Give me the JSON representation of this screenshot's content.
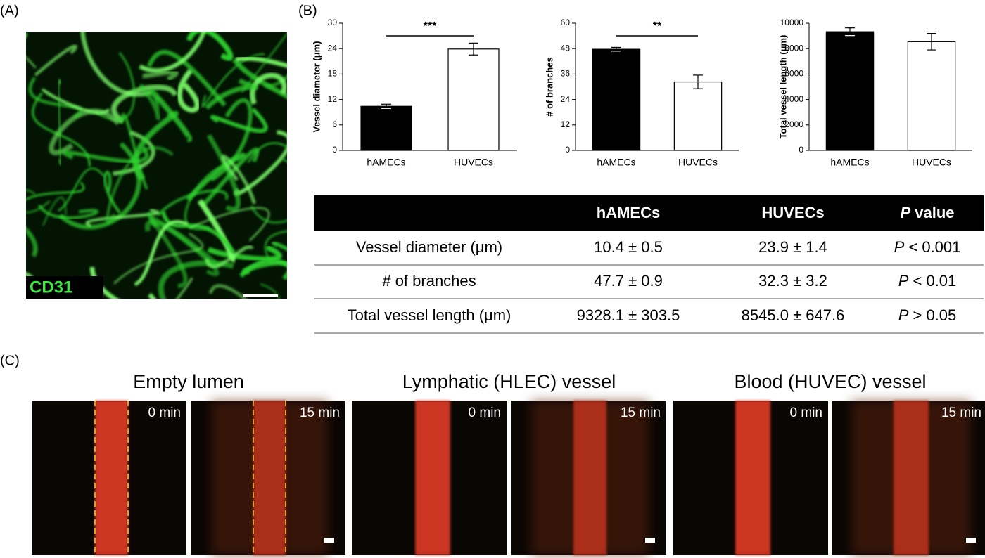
{
  "panel_labels": {
    "a": "(A)",
    "b": "(B)",
    "c": "(C)"
  },
  "image_a": {
    "label": "CD31"
  },
  "chart_data": [
    {
      "type": "bar",
      "ylabel": "Vessel diameter (μm)",
      "categories": [
        "hAMECs",
        "HUVECs"
      ],
      "values": [
        10.4,
        23.9
      ],
      "errors": [
        0.5,
        1.4
      ],
      "colors": [
        "#000000",
        "#ffffff"
      ],
      "ylim": [
        0,
        30
      ],
      "yticks": [
        0,
        6,
        12,
        18,
        24,
        30
      ],
      "significance": "***"
    },
    {
      "type": "bar",
      "ylabel": "# of branches",
      "categories": [
        "hAMECs",
        "HUVECs"
      ],
      "values": [
        47.7,
        32.3
      ],
      "errors": [
        0.9,
        3.2
      ],
      "colors": [
        "#000000",
        "#ffffff"
      ],
      "ylim": [
        0,
        60
      ],
      "yticks": [
        0,
        12,
        24,
        36,
        48,
        60
      ],
      "significance": "**"
    },
    {
      "type": "bar",
      "ylabel": "Total vessel length (μm)",
      "categories": [
        "hAMECs",
        "HUVECs"
      ],
      "values": [
        9328.1,
        8545.0
      ],
      "errors": [
        303.5,
        647.6
      ],
      "colors": [
        "#000000",
        "#ffffff"
      ],
      "ylim": [
        0,
        10000
      ],
      "yticks": [
        0,
        2000,
        4000,
        6000,
        8000,
        10000
      ]
    }
  ],
  "table": {
    "columns": [
      "hAMECs",
      "HUVECs",
      {
        "italic": "P",
        "text": " value"
      }
    ],
    "rows": [
      [
        "Vessel diameter (μm)",
        "10.4 ± 0.5",
        "23.9 ± 1.4",
        {
          "italic": "P",
          "text": " < 0.001"
        }
      ],
      [
        "# of branches",
        "47.7 ± 0.9",
        "32.3 ± 3.2",
        {
          "italic": "P",
          "text": " < 0.01"
        }
      ],
      [
        "Total vessel length (μm)",
        "9328.1 ± 303.5",
        "8545.0 ± 647.6",
        {
          "italic": "P",
          "text": " > 0.05"
        }
      ]
    ]
  },
  "panel_c": {
    "groups": [
      {
        "title": "Empty lumen",
        "frames": [
          "0 min",
          "15 min"
        ]
      },
      {
        "title": "Lymphatic (HLEC) vessel",
        "frames": [
          "0 min",
          "15 min"
        ]
      },
      {
        "title": "Blood (HUVEC) vessel",
        "frames": [
          "0 min",
          "15 min"
        ]
      }
    ]
  }
}
